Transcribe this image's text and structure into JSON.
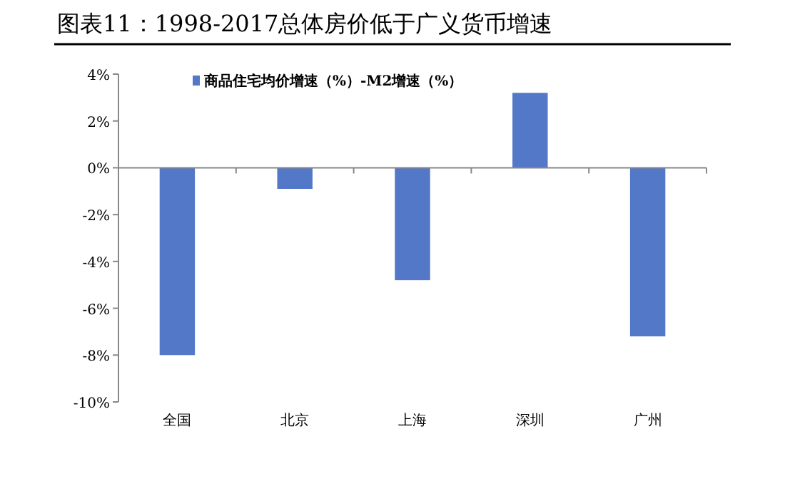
{
  "chart_data": {
    "type": "bar",
    "title": "图表11：1998-2017总体房价低于广义货币增速",
    "categories": [
      "全国",
      "北京",
      "上海",
      "深圳",
      "广州"
    ],
    "series": [
      {
        "name": "商品住宅均价增速（%）-M2增速（%）",
        "color": "#5478c8",
        "values": [
          -8.0,
          -0.9,
          -4.8,
          3.2,
          -7.2
        ]
      }
    ],
    "ylim": [
      -10,
      4
    ],
    "yticks": [
      {
        "value": -10,
        "label": "-10%"
      },
      {
        "value": -8,
        "label": "-8%"
      },
      {
        "value": -6,
        "label": "-6%"
      },
      {
        "value": -4,
        "label": "-4%"
      },
      {
        "value": -2,
        "label": "-2%"
      },
      {
        "value": 0,
        "label": "0%"
      },
      {
        "value": 2,
        "label": "2%"
      },
      {
        "value": 4,
        "label": "4%"
      }
    ],
    "legend": "top"
  }
}
